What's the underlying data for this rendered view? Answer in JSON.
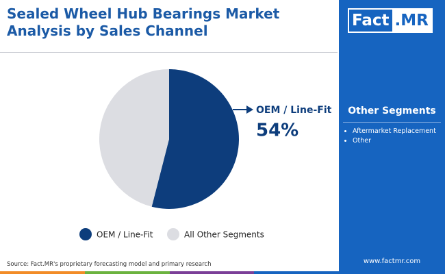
{
  "chart_data": {
    "type": "pie",
    "title": "Sealed Wheel Hub Bearings Market Analysis by Sales Channel",
    "categories": [
      "OEM / Line-Fit",
      "All Other Segments"
    ],
    "values": [
      54,
      46
    ],
    "value_labels": [
      "54%",
      null
    ],
    "colors": [
      "#0d3d7c",
      "#dcdde2"
    ],
    "legend": "bottom"
  },
  "side_panel": {
    "logo": {
      "left": "Fact",
      "right": ".MR"
    },
    "heading": "Other Segments",
    "items": [
      "Aftermarket Replacement",
      "Other"
    ],
    "website": "www.factmr.com"
  },
  "source": "Source: Fact.MR's proprietary forecasting model and primary research"
}
